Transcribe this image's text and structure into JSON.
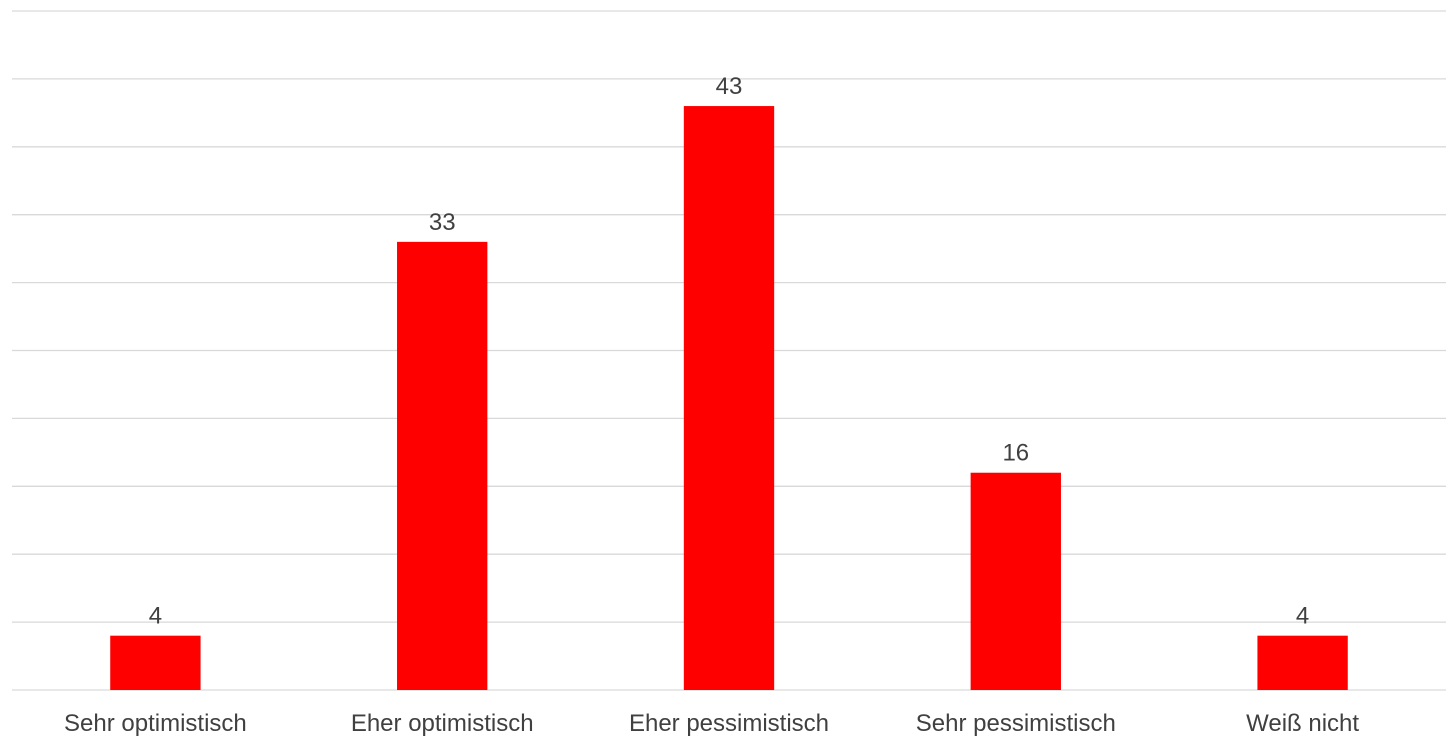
{
  "chart_data": {
    "type": "bar",
    "categories": [
      "Sehr optimistisch",
      "Eher optimistisch",
      "Eher pessimistisch",
      "Sehr pessimistisch",
      "Weiß nicht"
    ],
    "values": [
      4,
      33,
      43,
      16,
      4
    ],
    "ylim": [
      0,
      50
    ],
    "gridlines": true,
    "grid_step": 5,
    "y_tick_labels_shown": false,
    "legend": "none",
    "bar_color": "#ff0000",
    "grid_color": "#d9d9d9",
    "label_color": "#404040"
  }
}
